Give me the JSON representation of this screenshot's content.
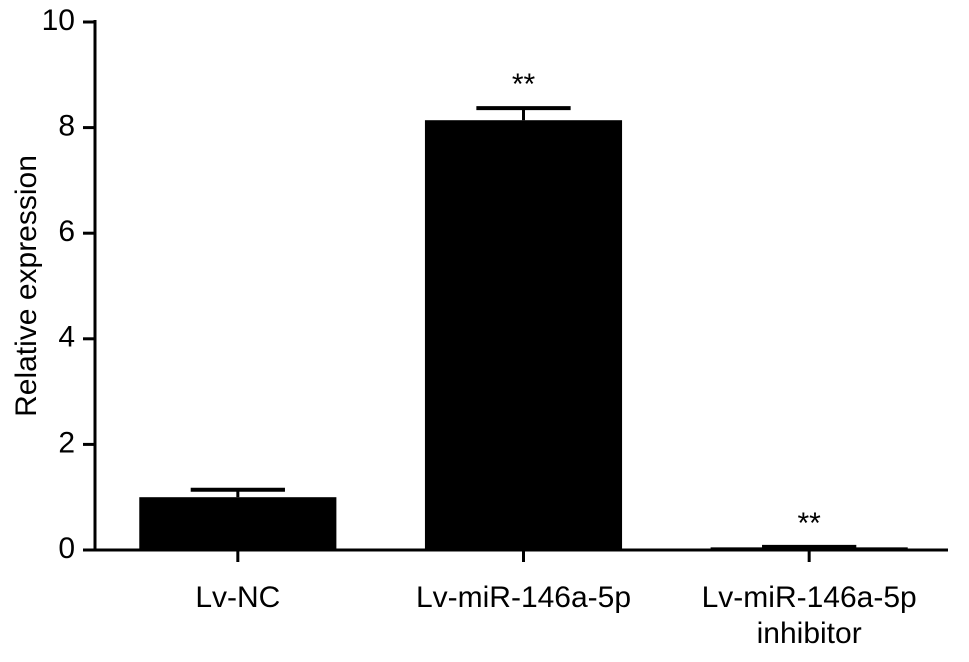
{
  "chart_data": {
    "type": "bar",
    "ylabel": "Relative expression",
    "categories": [
      "Lv-NC",
      "Lv-miR-146a-5p",
      "Lv-miR-146a-5p\ninhibitor"
    ],
    "values": [
      1.0,
      8.14,
      0.05
    ],
    "errors": [
      0.14,
      0.23,
      0.01
    ],
    "annotations": [
      null,
      "**",
      "**"
    ],
    "color": "#000000",
    "ylim": [
      0,
      10
    ],
    "yticks": [
      0,
      2,
      4,
      6,
      8,
      10
    ],
    "grid": false
  }
}
